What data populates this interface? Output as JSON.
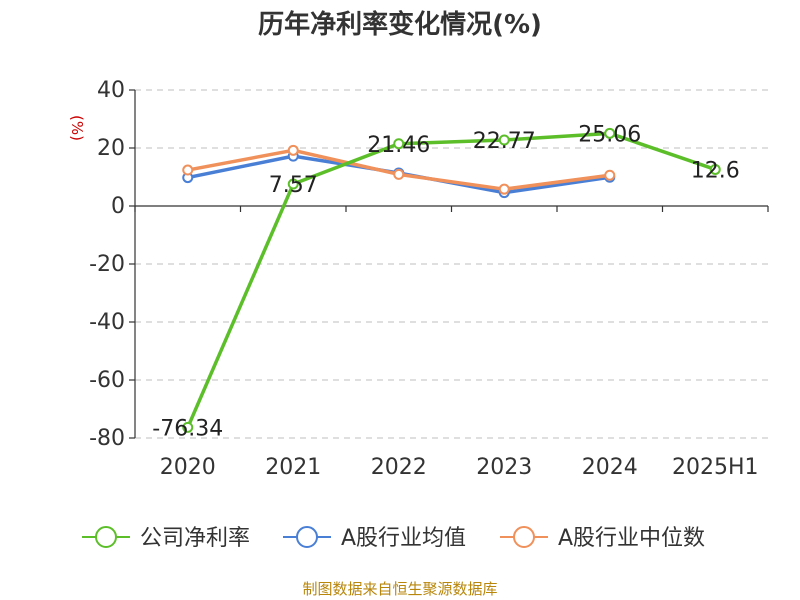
{
  "chart_data": {
    "type": "line",
    "title": "历年净利率变化情况(%)",
    "ylabel": "(%)",
    "categories": [
      "2020",
      "2021",
      "2022",
      "2023",
      "2024",
      "2025H1"
    ],
    "ylim": [
      -80,
      40
    ],
    "yticks": [
      40,
      20,
      0,
      -20,
      -40,
      -60,
      -80
    ],
    "grid": true,
    "legend_position": "bottom",
    "series": [
      {
        "name": "公司净利率",
        "color": "#5cbf2a",
        "values": [
          -76.34,
          7.57,
          21.46,
          22.77,
          25.06,
          12.6
        ],
        "labels": [
          "-76.34",
          "7.57",
          "21.46",
          "22.77",
          "25.06",
          "12.6"
        ]
      },
      {
        "name": "A股行业均值",
        "color": "#4a7fd6",
        "values": [
          9.8,
          17.2,
          11.4,
          4.6,
          9.9,
          null
        ]
      },
      {
        "name": "A股行业中位数",
        "color": "#f0905a",
        "values": [
          12.4,
          19.2,
          10.9,
          5.8,
          10.6,
          null
        ]
      }
    ]
  },
  "source": "制图数据来自恒生聚源数据库"
}
